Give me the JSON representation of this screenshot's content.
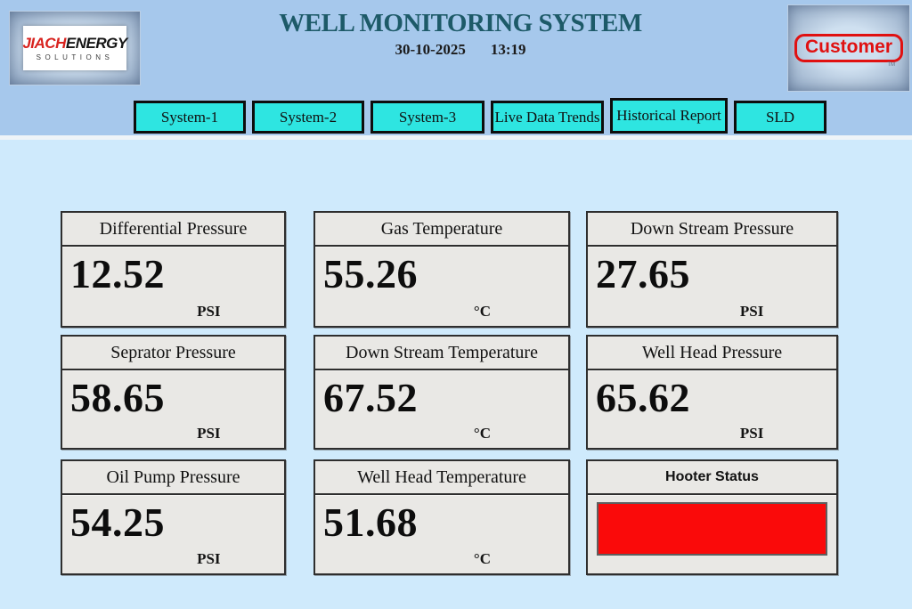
{
  "header": {
    "title": "WELL MONITORING SYSTEM",
    "date": "30-10-2025",
    "time": "13:19",
    "logo_left": {
      "brand_red": "JIACH",
      "brand_black": "ENERGY",
      "subtitle": "SOLUTIONS"
    },
    "logo_right": {
      "label": "Customer",
      "tm": "TM"
    }
  },
  "nav": {
    "tabs": [
      {
        "label": "System-1"
      },
      {
        "label": "System-2"
      },
      {
        "label": "System-3"
      },
      {
        "label": "Live Data Trends"
      },
      {
        "label": "Historical Report"
      },
      {
        "label": "SLD"
      }
    ]
  },
  "panels": [
    {
      "title": "Differential Pressure",
      "value": "12.52",
      "unit": "PSI"
    },
    {
      "title": "Gas Temperature",
      "value": "55.26",
      "unit": "°C"
    },
    {
      "title": "Down Stream Pressure",
      "value": "27.65",
      "unit": "PSI"
    },
    {
      "title": "Seprator Pressure",
      "value": "58.65",
      "unit": "PSI"
    },
    {
      "title": "Down Stream Temperature",
      "value": "67.52",
      "unit": "°C"
    },
    {
      "title": "Well Head Pressure",
      "value": "65.62",
      "unit": "PSI"
    },
    {
      "title": "Oil Pump Pressure",
      "value": "54.25",
      "unit": "PSI"
    },
    {
      "title": "Well Head  Temperature",
      "value": "51.68",
      "unit": "°C"
    }
  ],
  "hooter": {
    "title": "Hooter Status",
    "status_color": "#fa0a0a"
  },
  "colors": {
    "header_blue": "#a6c8ec",
    "main_blue": "#cfeafc",
    "tab_cyan": "#2ee5e1",
    "panel_gray": "#e9e8e5",
    "alarm_red": "#fa0a0a",
    "title_teal": "#1d5a68",
    "logo_red": "#d8231f"
  }
}
